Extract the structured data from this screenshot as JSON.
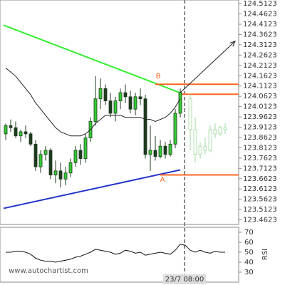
{
  "chart_data": [
    {
      "type": "candlestick",
      "ylim": [
        123.44,
        124.53
      ],
      "yticks": [
        124.5123,
        124.4623,
        124.4123,
        124.3623,
        124.3123,
        124.2623,
        124.2123,
        124.1623,
        124.1123,
        124.0623,
        124.0123,
        123.9623,
        123.9123,
        123.8623,
        123.8123,
        123.7623,
        123.7123,
        123.6623,
        123.6123,
        123.5623,
        123.5123,
        123.4623
      ],
      "x_label": "23/7 08:00",
      "watermark": "www.autochartist.com",
      "up_color": "#33cc33",
      "down_color": "#1e3a1e",
      "projection_color": "#9fd89f",
      "ma_color": "#222222",
      "candles": [
        {
          "open": 123.88,
          "high": 123.93,
          "low": 123.85,
          "close": 123.92
        },
        {
          "open": 123.92,
          "high": 123.95,
          "low": 123.89,
          "close": 123.91
        },
        {
          "open": 123.91,
          "high": 123.94,
          "low": 123.86,
          "close": 123.87
        },
        {
          "open": 123.87,
          "high": 123.9,
          "low": 123.84,
          "close": 123.89
        },
        {
          "open": 123.89,
          "high": 123.92,
          "low": 123.86,
          "close": 123.88
        },
        {
          "open": 123.88,
          "high": 123.89,
          "low": 123.82,
          "close": 123.83
        },
        {
          "open": 123.83,
          "high": 123.85,
          "low": 123.7,
          "close": 123.72
        },
        {
          "open": 123.72,
          "high": 123.8,
          "low": 123.69,
          "close": 123.78
        },
        {
          "open": 123.78,
          "high": 123.82,
          "low": 123.75,
          "close": 123.8
        },
        {
          "open": 123.8,
          "high": 123.81,
          "low": 123.66,
          "close": 123.68
        },
        {
          "open": 123.68,
          "high": 123.75,
          "low": 123.64,
          "close": 123.7
        },
        {
          "open": 123.7,
          "high": 123.74,
          "low": 123.62,
          "close": 123.66
        },
        {
          "open": 123.66,
          "high": 123.72,
          "low": 123.63,
          "close": 123.69
        },
        {
          "open": 123.69,
          "high": 123.76,
          "low": 123.67,
          "close": 123.74
        },
        {
          "open": 123.74,
          "high": 123.82,
          "low": 123.72,
          "close": 123.8
        },
        {
          "open": 123.8,
          "high": 123.83,
          "low": 123.73,
          "close": 123.76
        },
        {
          "open": 123.76,
          "high": 123.88,
          "low": 123.74,
          "close": 123.86
        },
        {
          "open": 123.86,
          "high": 123.96,
          "low": 123.84,
          "close": 123.94
        },
        {
          "open": 123.94,
          "high": 124.16,
          "low": 123.92,
          "close": 124.05
        },
        {
          "open": 124.05,
          "high": 124.15,
          "low": 124.0,
          "close": 124.1
        },
        {
          "open": 124.1,
          "high": 124.12,
          "low": 124.02,
          "close": 124.04
        },
        {
          "open": 124.04,
          "high": 124.08,
          "low": 123.96,
          "close": 123.98
        },
        {
          "open": 123.98,
          "high": 124.06,
          "low": 123.94,
          "close": 124.04
        },
        {
          "open": 124.04,
          "high": 124.1,
          "low": 124.0,
          "close": 124.08
        },
        {
          "open": 124.08,
          "high": 124.12,
          "low": 124.03,
          "close": 124.06
        },
        {
          "open": 124.06,
          "high": 124.09,
          "low": 123.98,
          "close": 124.0
        },
        {
          "open": 124.0,
          "high": 124.08,
          "low": 123.97,
          "close": 124.06
        },
        {
          "open": 124.06,
          "high": 124.1,
          "low": 124.02,
          "close": 124.05
        },
        {
          "open": 124.05,
          "high": 124.07,
          "low": 123.76,
          "close": 123.78
        },
        {
          "open": 123.78,
          "high": 123.92,
          "low": 123.7,
          "close": 123.8
        },
        {
          "open": 123.8,
          "high": 123.87,
          "low": 123.75,
          "close": 123.77
        },
        {
          "open": 123.77,
          "high": 123.85,
          "low": 123.76,
          "close": 123.82
        },
        {
          "open": 123.82,
          "high": 123.84,
          "low": 123.76,
          "close": 123.78
        },
        {
          "open": 123.78,
          "high": 123.85,
          "low": 123.77,
          "close": 123.83
        },
        {
          "open": 123.83,
          "high": 124.0,
          "low": 123.81,
          "close": 123.98
        },
        {
          "open": 123.98,
          "high": 124.1,
          "low": 123.96,
          "close": 124.08
        }
      ],
      "projection": [
        {
          "open": 124.05,
          "high": 124.08,
          "low": 123.8,
          "close": 123.9
        },
        {
          "open": 123.9,
          "high": 123.96,
          "low": 123.74,
          "close": 123.78
        },
        {
          "open": 123.78,
          "high": 123.84,
          "low": 123.76,
          "close": 123.82
        },
        {
          "open": 123.82,
          "high": 123.86,
          "low": 123.78,
          "close": 123.8
        },
        {
          "open": 123.8,
          "high": 123.92,
          "low": 123.79,
          "close": 123.9
        },
        {
          "open": 123.9,
          "high": 123.93,
          "low": 123.86,
          "close": 123.88
        },
        {
          "open": 123.88,
          "high": 123.92,
          "low": 123.87,
          "close": 123.91
        },
        {
          "open": 123.91,
          "high": 123.93,
          "low": 123.88,
          "close": 123.9
        }
      ],
      "ma": [
        124.2,
        124.18,
        124.16,
        124.13,
        124.1,
        124.07,
        124.03,
        124.0,
        123.97,
        123.94,
        123.91,
        123.89,
        123.88,
        123.87,
        123.87,
        123.87,
        123.88,
        123.9,
        123.93,
        123.95,
        123.97,
        123.97,
        123.97,
        123.97,
        123.96,
        123.96,
        123.96,
        123.96,
        123.95,
        123.95,
        123.94,
        123.95,
        123.96,
        123.98,
        124.01,
        124.05
      ],
      "trendlines": [
        {
          "color": "#33ee33",
          "points": [
            [
              0,
              124.408
            ],
            [
              35,
              124.079
            ]
          ]
        },
        {
          "color": "#2233cc",
          "points": [
            [
              0,
              123.518
            ],
            [
              35,
              123.705
            ]
          ]
        }
      ],
      "levels": [
        {
          "color": "#ff6622",
          "from": 30,
          "value": 124.1207
        },
        {
          "color": "#ff6622",
          "from": 35,
          "value": 124.0722
        },
        {
          "color": "#ff6622",
          "from": 31,
          "value": 123.6806
        }
      ],
      "arrow": {
        "from": [
          35,
          124.08
        ],
        "to": [
          46,
          124.33
        ]
      },
      "labels": [
        "B",
        "A"
      ]
    },
    {
      "type": "line",
      "label": "RSI",
      "color": "#111111",
      "ylim": [
        20,
        75
      ],
      "yticks": [
        70,
        60,
        50,
        40,
        30
      ],
      "values": [
        50,
        50,
        51,
        51,
        50,
        48,
        44,
        42,
        41,
        41,
        40,
        41,
        42,
        43,
        45,
        46,
        48,
        50,
        53,
        52,
        51,
        50,
        48,
        49,
        52,
        51,
        49,
        50,
        47,
        48,
        49,
        50,
        49,
        48,
        52,
        58,
        57,
        52,
        50,
        52,
        50,
        49,
        51,
        50,
        50
      ]
    }
  ]
}
